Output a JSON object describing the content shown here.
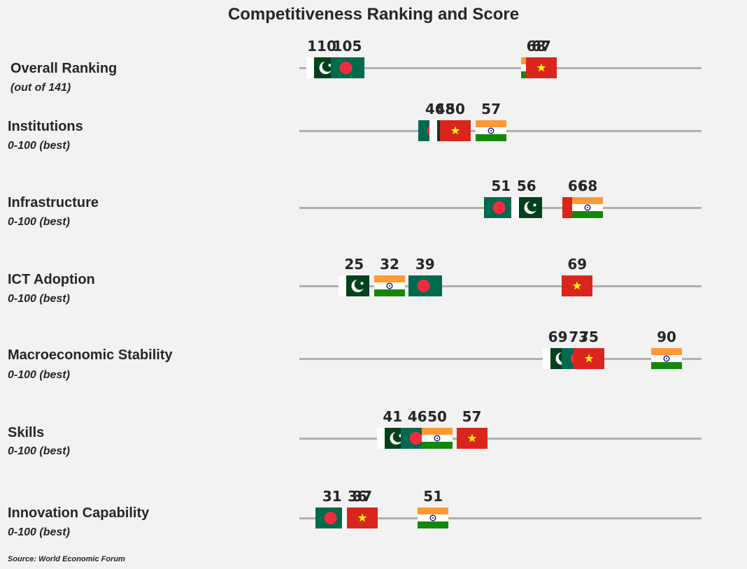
{
  "chart_data": {
    "type": "scatter",
    "title": "Competitiveness Ranking and Score",
    "source": "Source: World Economic Forum",
    "rows": [
      {
        "label": "Overall Ranking",
        "sublabel": "(out of 141)",
        "points": [
          {
            "country": "pakistan",
            "flag_icon": "pakistan-flag-icon",
            "value": 110,
            "label": "110"
          },
          {
            "country": "bangladesh",
            "flag_icon": "bangladesh-flag-icon",
            "value": 105,
            "label": "105"
          },
          {
            "country": "india",
            "flag_icon": "india-flag-icon",
            "value": 68,
            "label": "68"
          },
          {
            "country": "vietnam",
            "flag_icon": "vietnam-flag-icon",
            "value": 67,
            "label": "67"
          }
        ]
      },
      {
        "label": "Institutions",
        "sublabel": "0-100 (best)",
        "points": [
          {
            "country": "bangladesh",
            "flag_icon": "bangladesh-flag-icon",
            "value": 46,
            "label": "46"
          },
          {
            "country": "pakistan",
            "flag_icon": "pakistan-flag-icon",
            "value": 48,
            "label": "48"
          },
          {
            "country": "vietnam",
            "flag_icon": "vietnam-flag-icon",
            "value": 50,
            "label": "50"
          },
          {
            "country": "india",
            "flag_icon": "india-flag-icon",
            "value": 57,
            "label": "57"
          }
        ]
      },
      {
        "label": "Infrastructure",
        "sublabel": "0-100 (best)",
        "points": [
          {
            "country": "bangladesh",
            "flag_icon": "bangladesh-flag-icon",
            "value": 51,
            "label": "51"
          },
          {
            "country": "pakistan",
            "flag_icon": "pakistan-flag-icon",
            "value": 56,
            "label": "56"
          },
          {
            "country": "vietnam",
            "flag_icon": "vietnam-flag-icon",
            "value": 66,
            "label": "66"
          },
          {
            "country": "india",
            "flag_icon": "india-flag-icon",
            "value": 68,
            "label": "68"
          }
        ]
      },
      {
        "label": "ICT Adoption",
        "sublabel": "0-100 (best)",
        "points": [
          {
            "country": "pakistan",
            "flag_icon": "pakistan-flag-icon",
            "value": 25,
            "label": "25"
          },
          {
            "country": "india",
            "flag_icon": "india-flag-icon",
            "value": 32,
            "label": "32"
          },
          {
            "country": "bangladesh",
            "flag_icon": "bangladesh-flag-icon",
            "value": 39,
            "label": "39"
          },
          {
            "country": "vietnam",
            "flag_icon": "vietnam-flag-icon",
            "value": 69,
            "label": "69"
          }
        ]
      },
      {
        "label": "Macroeconomic Stability",
        "sublabel": "0-100 (best)",
        "points": [
          {
            "country": "pakistan",
            "flag_icon": "pakistan-flag-icon",
            "value": 69,
            "label": "69"
          },
          {
            "country": "bangladesh",
            "flag_icon": "bangladesh-flag-icon",
            "value": 73,
            "label": "73"
          },
          {
            "country": "vietnam",
            "flag_icon": "vietnam-flag-icon",
            "value": 75,
            "label": "75"
          },
          {
            "country": "india",
            "flag_icon": "india-flag-icon",
            "value": 90,
            "label": "90"
          }
        ]
      },
      {
        "label": "Skills",
        "sublabel": "0-100 (best)",
        "points": [
          {
            "country": "pakistan",
            "flag_icon": "pakistan-flag-icon",
            "value": 41,
            "label": "41"
          },
          {
            "country": "bangladesh",
            "flag_icon": "bangladesh-flag-icon",
            "value": 46,
            "label": "46"
          },
          {
            "country": "india",
            "flag_icon": "india-flag-icon",
            "value": 50,
            "label": "50"
          },
          {
            "country": "vietnam",
            "flag_icon": "vietnam-flag-icon",
            "value": 57,
            "label": "57"
          }
        ]
      },
      {
        "label": "Innovation Capability",
        "sublabel": "0-100 (best)",
        "points": [
          {
            "country": "bangladesh",
            "flag_icon": "bangladesh-flag-icon",
            "value": 31,
            "label": "31"
          },
          {
            "country": "pakistan",
            "flag_icon": "pakistan-flag-icon",
            "value": 36,
            "label": "36"
          },
          {
            "country": "vietnam",
            "flag_icon": "vietnam-flag-icon",
            "value": 37,
            "label": "37"
          },
          {
            "country": "india",
            "flag_icon": "india-flag-icon",
            "value": 51,
            "label": "51"
          }
        ]
      }
    ],
    "colors": {
      "axis_line": "#b0b0b0",
      "pakistan_green": "#01411c",
      "bangladesh_green": "#006a4e",
      "bangladesh_red": "#f42a41",
      "india_saffron": "#ff9933",
      "india_green": "#138808",
      "india_chakra": "#000080",
      "vietnam_red": "#da251d",
      "vietnam_star": "#ffff00"
    }
  }
}
